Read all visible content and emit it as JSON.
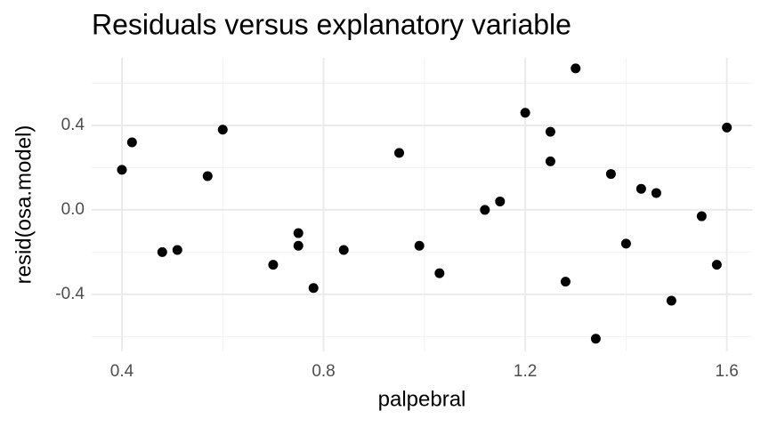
{
  "chart_data": {
    "type": "scatter",
    "title": "Residuals versus explanatory variable",
    "x_label": "palpebral",
    "y_label": "resid(osa.model)",
    "x": [
      0.4,
      0.42,
      0.48,
      0.51,
      0.57,
      0.6,
      0.7,
      0.75,
      0.75,
      0.78,
      0.84,
      0.95,
      0.99,
      1.03,
      1.12,
      1.15,
      1.2,
      1.25,
      1.25,
      1.28,
      1.3,
      1.34,
      1.37,
      1.4,
      1.43,
      1.46,
      1.49,
      1.55,
      1.58,
      1.6
    ],
    "values": [
      0.19,
      0.32,
      -0.2,
      -0.19,
      0.16,
      0.38,
      -0.26,
      -0.11,
      -0.17,
      -0.37,
      -0.19,
      0.27,
      -0.17,
      -0.3,
      0.0,
      0.04,
      0.46,
      0.37,
      0.23,
      -0.34,
      0.67,
      -0.61,
      0.17,
      -0.16,
      0.1,
      0.08,
      -0.43,
      -0.03,
      -0.26,
      0.39
    ],
    "color": "#000000",
    "xlim": [
      0.34,
      1.65
    ],
    "ylim": [
      -0.67,
      0.72
    ],
    "xticks": [
      0.4,
      0.8,
      1.2,
      1.6
    ],
    "yticks": [
      0.4,
      {
        "value": 0,
        "label": "0.0"
      },
      -0.4
    ],
    "x_minor_grid": [
      0.6,
      1.0,
      1.4
    ],
    "y_minor_grid": [
      0.6,
      0.2,
      -0.2,
      -0.6
    ],
    "grid": true
  }
}
